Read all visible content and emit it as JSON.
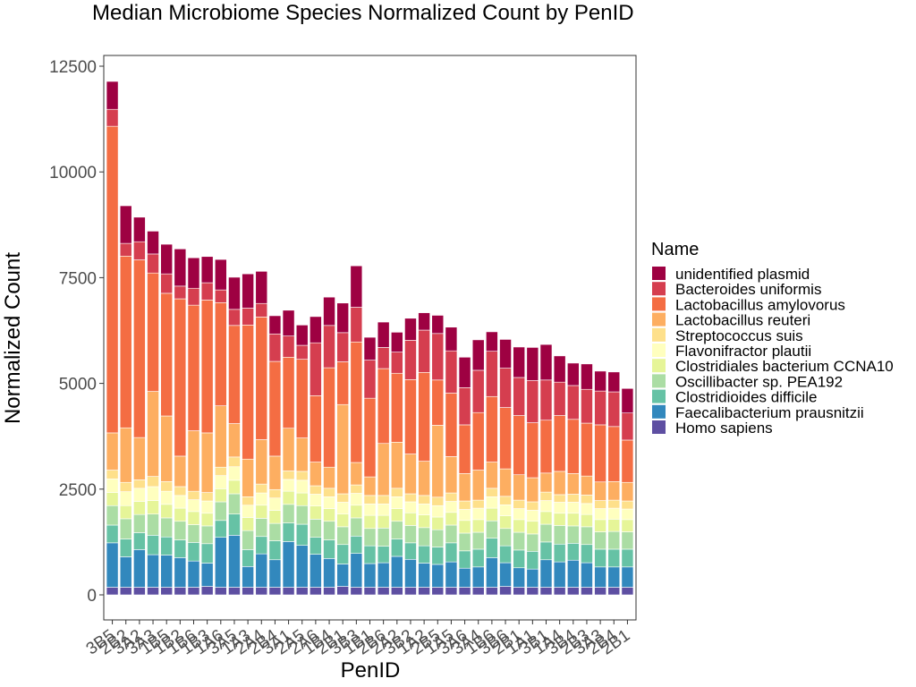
{
  "chart_data": {
    "type": "bar",
    "stacked": true,
    "title": "Median Microbiome Species Normalized Count by PenID",
    "xlabel": "PenID",
    "ylabel": "Normalized Count",
    "ylim": [
      -1150,
      12700
    ],
    "yticks": [
      0,
      2500,
      5000,
      7500,
      10000,
      12500
    ],
    "ytick_labels": [
      "0",
      "2500",
      "5000",
      "7500",
      "10000",
      "12500"
    ],
    "grid": false,
    "legend": {
      "title": "Name",
      "position": "right"
    },
    "categories": [
      "3B5",
      "2B2",
      "3A2",
      "3A3",
      "1B5",
      "1B2",
      "1B6",
      "1B3",
      "1A6",
      "3A5",
      "1A3",
      "2A4",
      "2B4",
      "3A1",
      "2A5",
      "2A6",
      "1B4",
      "2B1",
      "3B3",
      "1B1",
      "2B6",
      "2A2",
      "3B2",
      "1A2",
      "2B5",
      "1A5",
      "3A6",
      "3A4",
      "1B6",
      "3B6",
      "2B1",
      "1A1",
      "3B1",
      "1A4",
      "3B4",
      "2B3",
      "3A3",
      "2B4",
      "2B1"
    ],
    "x_tick_labels_readable": [
      "3B5",
      "2B2",
      "3A3",
      "1B5",
      "1B2",
      "1B6",
      "1B3",
      "1A6",
      "3A5",
      "1A3",
      "2A4",
      "2B4",
      "2A5",
      "2A6",
      "1B4",
      "2B1",
      "3B3",
      "1B1",
      "2B6",
      "3B2",
      "1A2",
      "2B5",
      "1A5",
      "3A6",
      "1B6",
      "3B1",
      "1A4",
      "3B4",
      "2B3",
      "3A4",
      "2B1"
    ],
    "series": [
      {
        "name": "Homo sapiens",
        "color": "#5e4fa2",
        "values": [
          180,
          180,
          180,
          180,
          180,
          180,
          180,
          200,
          180,
          180,
          180,
          180,
          180,
          180,
          180,
          180,
          180,
          200,
          180,
          180,
          180,
          180,
          180,
          180,
          180,
          180,
          180,
          180,
          180,
          200,
          180,
          180,
          180,
          180,
          180,
          180,
          180,
          180,
          180
        ]
      },
      {
        "name": "Faecalibacterium prausnitzii",
        "color": "#3288bd",
        "values": [
          1050,
          720,
          890,
          770,
          760,
          700,
          620,
          550,
          1180,
          1230,
          490,
          790,
          650,
          1080,
          990,
          780,
          680,
          530,
          800,
          560,
          580,
          730,
          660,
          570,
          540,
          600,
          450,
          480,
          700,
          560,
          460,
          430,
          650,
          600,
          640,
          580,
          480,
          480,
          480
        ]
      },
      {
        "name": "Clostridioides difficile",
        "color": "#66c2a5",
        "values": [
          420,
          420,
          400,
          460,
          430,
          420,
          440,
          460,
          400,
          500,
          400,
          410,
          450,
          440,
          500,
          400,
          440,
          460,
          410,
          420,
          390,
          410,
          390,
          410,
          410,
          450,
          410,
          420,
          460,
          400,
          420,
          420,
          420,
          420,
          400,
          430,
          420,
          420,
          420
        ]
      },
      {
        "name": "Oscillibacter sp. PEA192",
        "color": "#abdda4",
        "values": [
          460,
          480,
          430,
          500,
          450,
          440,
          420,
          420,
          440,
          480,
          450,
          430,
          410,
          440,
          440,
          430,
          440,
          420,
          430,
          410,
          430,
          420,
          410,
          430,
          410,
          420,
          420,
          400,
          410,
          410,
          420,
          410,
          420,
          440,
          410,
          420,
          410,
          420,
          410
        ]
      },
      {
        "name": "Clostridiales bacterium CCNA10",
        "color": "#e6f598",
        "values": [
          310,
          310,
          310,
          320,
          320,
          310,
          310,
          300,
          310,
          320,
          310,
          310,
          310,
          310,
          300,
          310,
          300,
          300,
          300,
          310,
          300,
          300,
          300,
          300,
          300,
          300,
          300,
          300,
          300,
          300,
          300,
          300,
          300,
          290,
          300,
          290,
          290,
          290,
          290
        ]
      },
      {
        "name": "Flavonifractor plautii",
        "color": "#ffffbf",
        "values": [
          320,
          330,
          310,
          330,
          310,
          300,
          280,
          290,
          310,
          320,
          290,
          290,
          290,
          280,
          300,
          280,
          280,
          280,
          280,
          270,
          270,
          280,
          260,
          260,
          270,
          260,
          260,
          270,
          270,
          260,
          260,
          260,
          260,
          260,
          260,
          260,
          260,
          260,
          250
        ]
      },
      {
        "name": "Streptococcus suis",
        "color": "#fee08b",
        "values": [
          210,
          220,
          200,
          240,
          230,
          210,
          200,
          200,
          200,
          230,
          200,
          210,
          200,
          200,
          210,
          200,
          200,
          200,
          200,
          200,
          200,
          200,
          190,
          200,
          200,
          200,
          200,
          190,
          200,
          200,
          200,
          200,
          200,
          180,
          190,
          200,
          190,
          190,
          190
        ]
      },
      {
        "name": "Lactobacillus reuteri",
        "color": "#fdae61",
        "values": [
          880,
          1290,
          1000,
          2010,
          1550,
          720,
          1430,
          1410,
          1450,
          790,
          890,
          1050,
          790,
          1010,
          790,
          560,
          500,
          2110,
          530,
          440,
          1230,
          1090,
          940,
          810,
          1700,
          860,
          650,
          710,
          620,
          650,
          600,
          570,
          450,
          550,
          490,
          450,
          440,
          440,
          440
        ]
      },
      {
        "name": "Lactobacillus amylovorus",
        "color": "#f46d43",
        "values": [
          7250,
          4060,
          4200,
          2800,
          2900,
          3720,
          2970,
          3140,
          2440,
          2320,
          3170,
          2900,
          2240,
          1680,
          1860,
          1570,
          2350,
          1010,
          2850,
          1860,
          1770,
          1630,
          1760,
          2100,
          1070,
          1500,
          1150,
          1360,
          1550,
          1450,
          1400,
          1300,
          1250,
          1320,
          1280,
          1250,
          1350,
          1300,
          1000
        ]
      },
      {
        "name": "Bacteroides uniformis",
        "color": "#d53e4f",
        "values": [
          400,
          300,
          430,
          450,
          460,
          300,
          400,
          410,
          300,
          380,
          400,
          320,
          650,
          500,
          330,
          1250,
          1000,
          690,
          820,
          900,
          500,
          500,
          930,
          1000,
          1100,
          1000,
          880,
          1000,
          1070,
          930,
          900,
          1000,
          950,
          790,
          800,
          800,
          800,
          820,
          640
        ]
      },
      {
        "name": "unidentified plasmid",
        "color": "#9e0142",
        "values": [
          660,
          890,
          580,
          540,
          700,
          880,
          720,
          620,
          720,
          760,
          810,
          760,
          430,
          610,
          480,
          620,
          670,
          700,
          980,
          540,
          600,
          470,
          520,
          410,
          430,
          560,
          720,
          720,
          460,
          680,
          720,
          780,
          840,
          620,
          530,
          600,
          470,
          470,
          580
        ]
      }
    ]
  }
}
